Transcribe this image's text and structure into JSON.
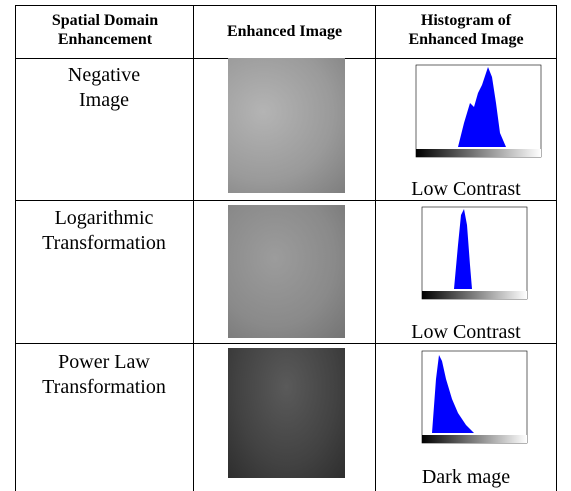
{
  "table": {
    "header": [
      "Spatial Domain Enhancement",
      "Enhanced Image",
      "Histogram of Enhanced Image"
    ],
    "rows": [
      {
        "method": "Negative Image",
        "caption": "Low Contrast"
      },
      {
        "method": "Logarithmic Transformation",
        "caption": "Low Contrast"
      },
      {
        "method": "Power Law Transformation",
        "caption": "Dark mage"
      }
    ]
  }
}
